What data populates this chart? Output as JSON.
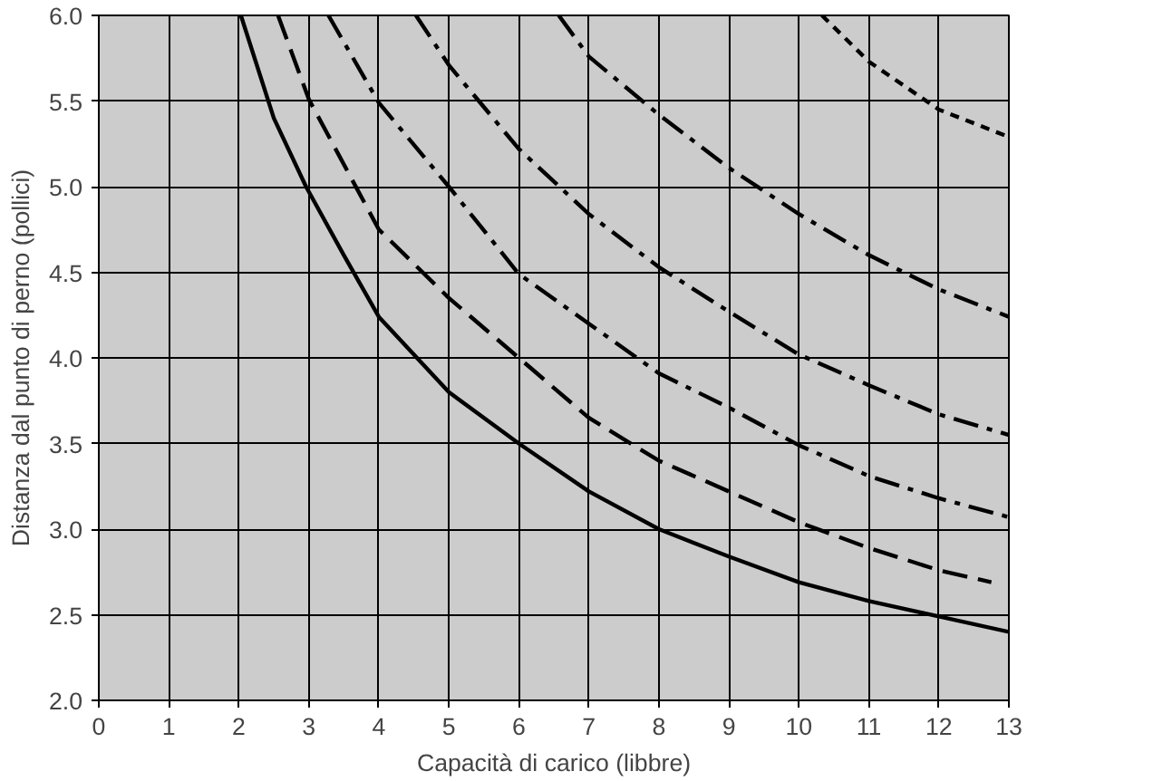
{
  "chart_data": {
    "type": "line",
    "xlabel": "Capacità di carico (libbre)",
    "ylabel": "Distanza dal punto di perno (pollici)",
    "xlim": [
      0,
      13
    ],
    "ylim": [
      2.0,
      6.0
    ],
    "xticks": [
      0,
      1,
      2,
      3,
      4,
      5,
      6,
      7,
      8,
      9,
      10,
      11,
      12,
      13
    ],
    "yticks": [
      {
        "value": 2.0,
        "label": "2.0"
      },
      {
        "value": 2.5,
        "label": "2.5"
      },
      {
        "value": 3.0,
        "label": "3.0"
      },
      {
        "value": 3.5,
        "label": "3.5"
      },
      {
        "value": 4.0,
        "label": "4.0"
      },
      {
        "value": 4.5,
        "label": "4.5"
      },
      {
        "value": 5.0,
        "label": "5.0"
      },
      {
        "value": 5.5,
        "label": "5.5"
      },
      {
        "value": 6.0,
        "label": "6.0"
      }
    ],
    "grid": true,
    "marker": "none",
    "series": [
      {
        "color": "#000000",
        "line_style": "solid",
        "x": [
          2.03,
          2.5,
          2.96,
          3.5,
          4,
          5,
          6,
          7,
          8,
          9,
          10,
          11,
          12,
          13
        ],
        "values": [
          6.0,
          5.4,
          5.0,
          4.6,
          4.24,
          3.8,
          3.5,
          3.22,
          3.0,
          2.84,
          2.69,
          2.58,
          2.49,
          2.4
        ]
      },
      {
        "color": "#000000",
        "line_style": "dashed",
        "x": [
          2.56,
          3,
          4,
          5,
          6,
          7,
          8,
          9,
          10,
          11,
          12,
          12.75
        ],
        "values": [
          6.0,
          5.51,
          4.75,
          4.35,
          4.0,
          3.65,
          3.4,
          3.22,
          3.04,
          2.89,
          2.76,
          2.69
        ]
      },
      {
        "color": "#000000",
        "line_style": "dashdot",
        "x": [
          3.28,
          4,
          5,
          6,
          7,
          8,
          9,
          10,
          11,
          12,
          13
        ],
        "values": [
          6.0,
          5.49,
          5.0,
          4.49,
          4.2,
          3.91,
          3.71,
          3.49,
          3.31,
          3.18,
          3.07
        ]
      },
      {
        "color": "#000000",
        "line_style": "dashdot",
        "x": [
          4.53,
          5,
          6,
          7,
          8,
          9,
          10,
          11,
          12,
          13
        ],
        "values": [
          6.0,
          5.71,
          5.22,
          4.84,
          4.53,
          4.27,
          4.02,
          3.84,
          3.67,
          3.55
        ]
      },
      {
        "color": "#000000",
        "line_style": "dashdot",
        "x": [
          6.57,
          7,
          8,
          9,
          10,
          11,
          12,
          13
        ],
        "values": [
          6.0,
          5.76,
          5.42,
          5.11,
          4.84,
          4.6,
          4.4,
          4.24
        ]
      },
      {
        "color": "#000000",
        "line_style": "dotted",
        "x": [
          10.33,
          11,
          12,
          13
        ],
        "values": [
          6.0,
          5.73,
          5.45,
          5.29
        ]
      }
    ]
  }
}
